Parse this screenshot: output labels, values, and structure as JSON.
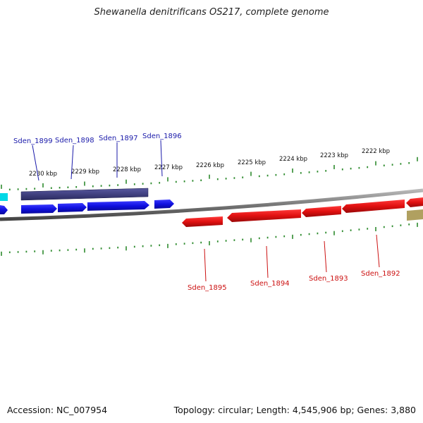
{
  "title": "Shewanella denitrificans OS217, complete genome",
  "footer": {
    "accession": "Accession: NC_007954",
    "summary": "Topology: circular; Length: 4,545,906 bp; Genes: 3,880"
  },
  "ruler_labels": [
    "2230 kbp",
    "2229 kbp",
    "2228 kbp",
    "2227 kbp",
    "2226 kbp",
    "2225 kbp",
    "2224 kbp",
    "2223 kbp",
    "2222 kbp"
  ],
  "forward_gene_labels": [
    "Sden_1899",
    "Sden_1898",
    "Sden_1897",
    "Sden_1896"
  ],
  "reverse_gene_labels": [
    "Sden_1895",
    "Sden_1894",
    "Sden_1893",
    "Sden_1892"
  ],
  "colors": {
    "forward_gene": "#1414e6",
    "reverse_gene": "#e61414",
    "forward_label": "#1a1aaa",
    "reverse_label": "#cc1111",
    "tick": "#2e8b2e",
    "backbone": "#808080",
    "feature_dark": "#3c3c7a",
    "feature_cyan": "#00d8e6",
    "feature_olive": "#b0a060"
  }
}
